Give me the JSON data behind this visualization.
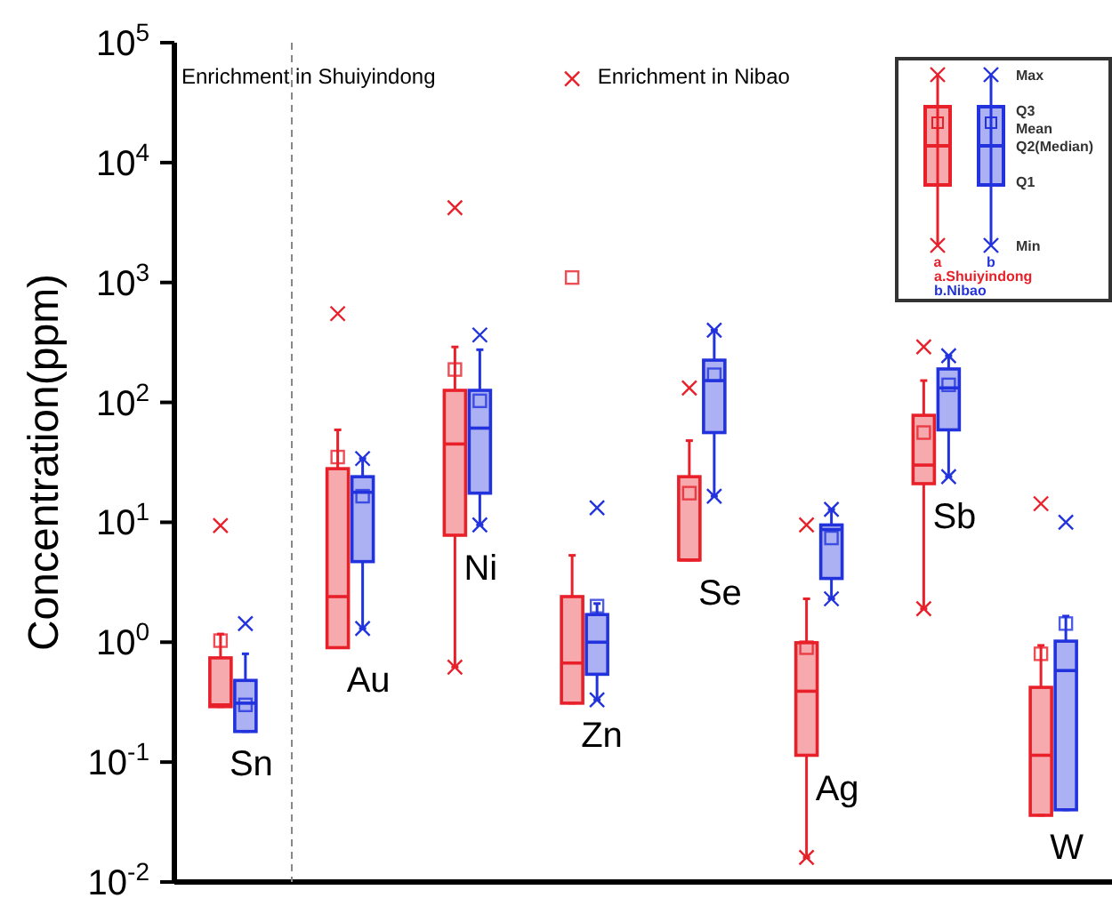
{
  "chart_data": {
    "type": "box",
    "ylabel": "Concentration(ppm)",
    "categories": [
      null,
      null,
      null,
      null,
      null,
      null,
      null,
      null
    ],
    "log": true,
    "ylim": [
      0.01,
      100000
    ],
    "yticks": [
      {
        "value": 0.01,
        "label": "10$^{-2}$"
      },
      {
        "value": 0.1,
        "label": "10$^{-1}$"
      },
      {
        "value": 1,
        "label": "10$^{0}$"
      },
      {
        "value": 10,
        "label": "10$^{1}$"
      },
      {
        "value": 100,
        "label": "10$^{2}$"
      },
      {
        "value": 1000,
        "label": "10$^{3}$"
      },
      {
        "value": 10000,
        "label": "10$^{4}$"
      },
      {
        "value": 100000,
        "label": "10$^{5}$"
      }
    ],
    "tick_labels": "y",
    "legend": "top right",
    "marker": "cross",
    "annotations": [
      "Enrichment in Shuiyindong",
      "Enrichment in Nibao",
      "Max",
      "Q3",
      "Mean",
      "Q2(Median)",
      "Q1",
      "Min",
      "a",
      "b",
      "Sn",
      "Au",
      "Ni",
      "Zn",
      "Se",
      "Ag",
      "Sb",
      "W"
    ],
    "series": [
      {
        "name": "a.Shuiyindong",
        "color": "#e8202a",
        "boxes": [
          {
            "low": 0.29,
            "q1": 0.29,
            "median": 0.3,
            "q3": 0.74,
            "high": 1.17,
            "mean": 1.03,
            "outliers": [
              9.4
            ]
          },
          {
            "low": 0.9,
            "q1": 0.9,
            "median": 2.4,
            "q3": 28,
            "high": 59,
            "mean": 35,
            "outliers": [
              550
            ]
          },
          {
            "low": 0.62,
            "q1": 7.8,
            "median": 45,
            "q3": 126,
            "high": 290,
            "mean": 188,
            "outliers": [
              4200,
              0.62
            ]
          },
          {
            "low": 0.31,
            "q1": 0.31,
            "median": 0.67,
            "q3": 2.4,
            "high": 5.3,
            "mean": 1100,
            "outliers": [
              50000
            ]
          },
          {
            "low": 4.85,
            "q1": 4.85,
            "median": 4.85,
            "q3": 24,
            "high": 48,
            "mean": 17.5,
            "outliers": [
              132
            ]
          },
          {
            "low": 0.016,
            "q1": 0.114,
            "median": 0.39,
            "q3": 0.99,
            "high": 2.3,
            "mean": 0.9,
            "outliers": [
              0.016,
              9.5
            ]
          },
          {
            "low": 1.9,
            "q1": 21,
            "median": 30,
            "q3": 78,
            "high": 152,
            "mean": 56,
            "outliers": [
              1.9,
              290
            ]
          },
          {
            "low": 0.036,
            "q1": 0.036,
            "median": 0.114,
            "q3": 0.42,
            "high": 0.94,
            "mean": 0.8,
            "outliers": [
              14.3
            ]
          }
        ]
      },
      {
        "name": "b.Nibao",
        "color": "#2233dd",
        "boxes": [
          {
            "low": 0.18,
            "q1": 0.18,
            "median": 0.31,
            "q3": 0.48,
            "high": 0.8,
            "mean": 0.3,
            "outliers": [
              1.43
            ]
          },
          {
            "low": 1.3,
            "q1": 4.7,
            "median": 17.8,
            "q3": 24,
            "high": 34,
            "mean": 16.5,
            "outliers": [
              34,
              1.3
            ]
          },
          {
            "low": 9.5,
            "q1": 17.5,
            "median": 61,
            "q3": 126,
            "high": 275,
            "mean": 103,
            "outliers": [
              365,
              9.5
            ]
          },
          {
            "low": 0.33,
            "q1": 0.54,
            "median": 1.0,
            "q3": 1.7,
            "high": 2.1,
            "mean": 2.0,
            "outliers": [
              0.33,
              13.2
            ]
          },
          {
            "low": 16.5,
            "q1": 56,
            "median": 152,
            "q3": 225,
            "high": 400,
            "mean": 170,
            "outliers": [
              400,
              16.5
            ]
          },
          {
            "low": 2.3,
            "q1": 3.4,
            "median": 8.7,
            "q3": 9.5,
            "high": 12.8,
            "mean": 7.4,
            "outliers": [
              12.8,
              2.3
            ]
          },
          {
            "low": 24,
            "q1": 59,
            "median": 132,
            "q3": 190,
            "high": 245,
            "mean": 140,
            "outliers": [
              245,
              24
            ]
          },
          {
            "low": 0.04,
            "q1": 0.04,
            "median": 0.58,
            "q3": 1.02,
            "high": 1.65,
            "mean": 1.43,
            "outliers": [
              10
            ]
          }
        ]
      }
    ]
  }
}
